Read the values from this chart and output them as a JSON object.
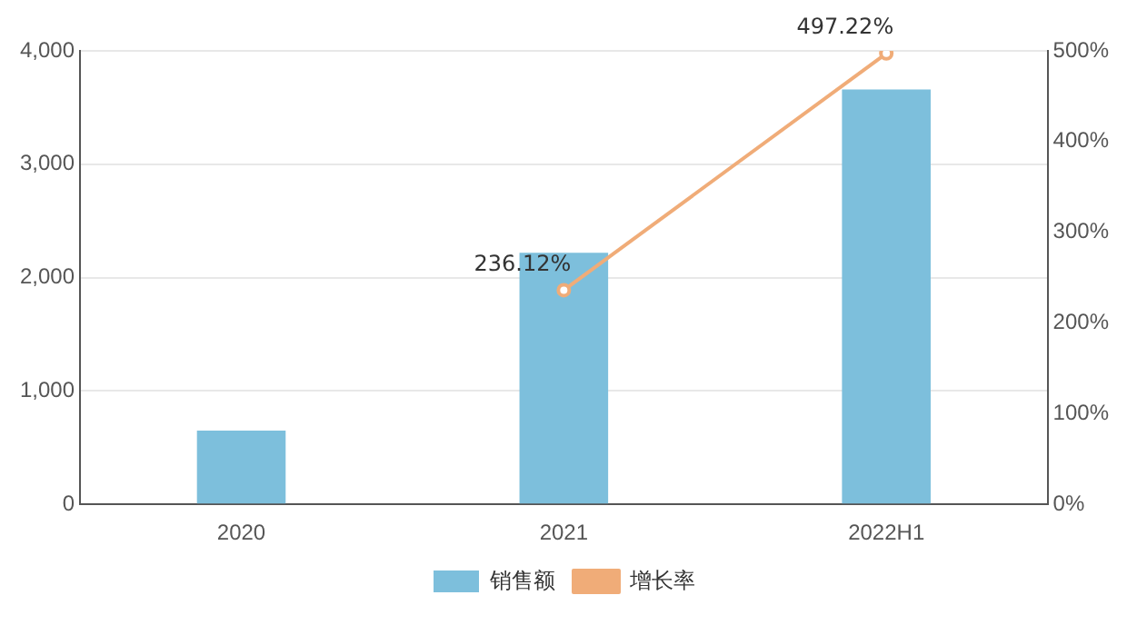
{
  "chart_data": {
    "type": "bar",
    "categories": [
      "2020",
      "2021",
      "2022H1"
    ],
    "series": [
      {
        "name": "销售额",
        "color": "#7dbfdc",
        "values": [
          650,
          2220,
          3660
        ]
      },
      {
        "name": "增长率",
        "type": "line",
        "axis": "y2",
        "color": "#f0ac78",
        "values": [
          null,
          236.12,
          497.22
        ],
        "value_labels": [
          null,
          "236.12%",
          "497.22%"
        ]
      }
    ],
    "ylim": [
      0,
      4000
    ],
    "yticks": [
      0,
      {
        "value": 1000,
        "label": "1,000"
      },
      {
        "value": 2000,
        "label": "2,000"
      },
      {
        "value": 3000,
        "label": "3,000"
      },
      {
        "value": 4000,
        "label": "4,000"
      }
    ],
    "y2lim": [
      0,
      500
    ],
    "y2ticks": [
      {
        "value": 0,
        "label": "0%"
      },
      {
        "value": 100,
        "label": "100%"
      },
      {
        "value": 200,
        "label": "200%"
      },
      {
        "value": 300,
        "label": "300%"
      },
      {
        "value": 400,
        "label": "400%"
      },
      {
        "value": 500,
        "label": "500%"
      }
    ],
    "grid": "y",
    "legend": "bottom",
    "marker": "circle",
    "line_style": "solid"
  }
}
